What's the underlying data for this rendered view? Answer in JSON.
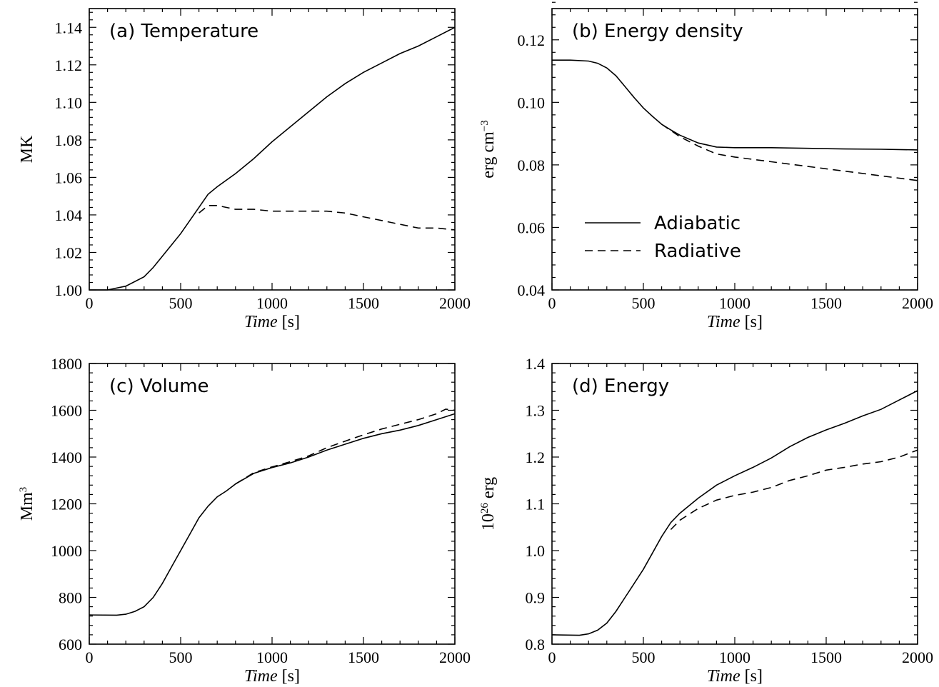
{
  "chart_data": [
    {
      "type": "line",
      "panel": "a",
      "title": "(a) Temperature",
      "xlabel_italic": "Time",
      "xlabel_unit": " [s]",
      "ylabel": "MK",
      "xlim": [
        0,
        2000
      ],
      "ylim": [
        1.0,
        1.15
      ],
      "xticks": [
        0,
        500,
        1000,
        1500,
        2000
      ],
      "yticks": [
        1.0,
        1.02,
        1.04,
        1.06,
        1.08,
        1.1,
        1.12,
        1.14
      ],
      "ytick_labels": [
        "1.00",
        "1.02",
        "1.04",
        "1.06",
        "1.08",
        "1.10",
        "1.12",
        "1.14"
      ],
      "series": [
        {
          "name": "Adiabatic",
          "style": "solid",
          "x": [
            0,
            100,
            200,
            300,
            350,
            400,
            450,
            500,
            550,
            600,
            650,
            700,
            800,
            900,
            1000,
            1100,
            1200,
            1300,
            1400,
            1500,
            1600,
            1700,
            1800,
            1900,
            2000
          ],
          "y": [
            1.0,
            1.0,
            1.002,
            1.007,
            1.012,
            1.018,
            1.024,
            1.03,
            1.037,
            1.044,
            1.051,
            1.055,
            1.062,
            1.07,
            1.079,
            1.087,
            1.095,
            1.103,
            1.11,
            1.116,
            1.121,
            1.126,
            1.13,
            1.135,
            1.14
          ]
        },
        {
          "name": "Radiative",
          "style": "dashed",
          "x": [
            600,
            650,
            700,
            800,
            900,
            1000,
            1100,
            1200,
            1300,
            1400,
            1500,
            1600,
            1700,
            1800,
            1900,
            2000
          ],
          "y": [
            1.041,
            1.045,
            1.045,
            1.043,
            1.043,
            1.042,
            1.042,
            1.042,
            1.042,
            1.041,
            1.039,
            1.037,
            1.035,
            1.033,
            1.033,
            1.032
          ]
        }
      ]
    },
    {
      "type": "line",
      "panel": "b",
      "title": "(b) Energy density",
      "xlabel_italic": "Time",
      "xlabel_unit": " [s]",
      "ylabel": "erg cm",
      "ylabel_sup": "−3",
      "xlim": [
        0,
        2000
      ],
      "ylim": [
        0.04,
        0.13
      ],
      "xticks": [
        0,
        500,
        1000,
        1500,
        2000
      ],
      "yticks": [
        0.04,
        0.06,
        0.08,
        0.1,
        0.12
      ],
      "ytick_labels": [
        "0.04",
        "0.06",
        "0.08",
        "0.10",
        "0.12"
      ],
      "legend": {
        "position": "center-left",
        "entries": [
          {
            "label": "Adiabatic",
            "style": "solid"
          },
          {
            "label": "Radiative",
            "style": "dashed"
          }
        ]
      },
      "series": [
        {
          "name": "Adiabatic",
          "style": "solid",
          "x": [
            0,
            100,
            200,
            250,
            300,
            350,
            400,
            450,
            500,
            550,
            600,
            650,
            700,
            800,
            900,
            1000,
            1200,
            1400,
            1600,
            1800,
            2000
          ],
          "y": [
            0.1135,
            0.1135,
            0.1132,
            0.1125,
            0.111,
            0.1085,
            0.105,
            0.1015,
            0.0982,
            0.0955,
            0.093,
            0.0912,
            0.0895,
            0.087,
            0.0857,
            0.0855,
            0.0855,
            0.0853,
            0.0851,
            0.085,
            0.0848
          ]
        },
        {
          "name": "Radiative",
          "style": "dashed",
          "x": [
            600,
            650,
            700,
            800,
            900,
            1000,
            1200,
            1400,
            1600,
            1800,
            2000
          ],
          "y": [
            0.093,
            0.091,
            0.089,
            0.086,
            0.0835,
            0.0825,
            0.081,
            0.0795,
            0.078,
            0.0765,
            0.075
          ]
        }
      ]
    },
    {
      "type": "line",
      "panel": "c",
      "title": "(c) Volume",
      "xlabel_italic": "Time",
      "xlabel_unit": " [s]",
      "ylabel": "Mm",
      "ylabel_sup": "3",
      "xlim": [
        0,
        2000
      ],
      "ylim": [
        600,
        1800
      ],
      "xticks": [
        0,
        500,
        1000,
        1500,
        2000
      ],
      "yticks": [
        600,
        800,
        1000,
        1200,
        1400,
        1600,
        1800
      ],
      "ytick_labels": [
        "600",
        "800",
        "1000",
        "1200",
        "1400",
        "1600",
        "1800"
      ],
      "series": [
        {
          "name": "Adiabatic",
          "style": "solid",
          "x": [
            0,
            150,
            200,
            250,
            300,
            350,
            400,
            450,
            500,
            550,
            600,
            650,
            700,
            750,
            800,
            900,
            1000,
            1100,
            1200,
            1300,
            1400,
            1500,
            1600,
            1700,
            1800,
            1900,
            2000
          ],
          "y": [
            725,
            724,
            728,
            740,
            760,
            800,
            860,
            930,
            1000,
            1070,
            1140,
            1190,
            1230,
            1255,
            1285,
            1330,
            1355,
            1375,
            1400,
            1430,
            1455,
            1480,
            1500,
            1515,
            1535,
            1560,
            1585
          ]
        },
        {
          "name": "Radiative",
          "style": "dashed",
          "x": [
            800,
            900,
            1000,
            1100,
            1200,
            1300,
            1400,
            1500,
            1600,
            1700,
            1800,
            1900,
            1950,
            2000
          ],
          "y": [
            1285,
            1333,
            1358,
            1380,
            1405,
            1440,
            1468,
            1495,
            1520,
            1540,
            1560,
            1585,
            1605,
            1600
          ]
        }
      ]
    },
    {
      "type": "line",
      "panel": "d",
      "title": "(d) Energy",
      "xlabel_italic": "Time",
      "xlabel_unit": " [s]",
      "ylabel_pre": "10",
      "ylabel_sup": "26",
      "ylabel": " erg",
      "xlim": [
        0,
        2000
      ],
      "ylim": [
        0.8,
        1.4
      ],
      "xticks": [
        0,
        500,
        1000,
        1500,
        2000
      ],
      "yticks": [
        0.8,
        0.9,
        1.0,
        1.1,
        1.2,
        1.3,
        1.4
      ],
      "ytick_labels": [
        "0.8",
        "0.9",
        "1.0",
        "1.1",
        "1.2",
        "1.3",
        "1.4"
      ],
      "series": [
        {
          "name": "Adiabatic",
          "style": "solid",
          "x": [
            0,
            150,
            200,
            250,
            300,
            350,
            400,
            450,
            500,
            550,
            600,
            650,
            700,
            800,
            900,
            1000,
            1100,
            1200,
            1300,
            1400,
            1500,
            1600,
            1700,
            1800,
            1900,
            2000
          ],
          "y": [
            0.82,
            0.819,
            0.822,
            0.83,
            0.845,
            0.87,
            0.9,
            0.93,
            0.96,
            0.995,
            1.03,
            1.06,
            1.08,
            1.112,
            1.14,
            1.16,
            1.178,
            1.198,
            1.222,
            1.242,
            1.258,
            1.272,
            1.288,
            1.302,
            1.322,
            1.342
          ]
        },
        {
          "name": "Radiative",
          "style": "dashed",
          "x": [
            650,
            700,
            800,
            900,
            1000,
            1100,
            1200,
            1300,
            1400,
            1500,
            1600,
            1700,
            1800,
            1900,
            2000
          ],
          "y": [
            1.045,
            1.065,
            1.09,
            1.108,
            1.118,
            1.125,
            1.135,
            1.15,
            1.16,
            1.172,
            1.178,
            1.185,
            1.19,
            1.2,
            1.215
          ]
        }
      ]
    }
  ]
}
